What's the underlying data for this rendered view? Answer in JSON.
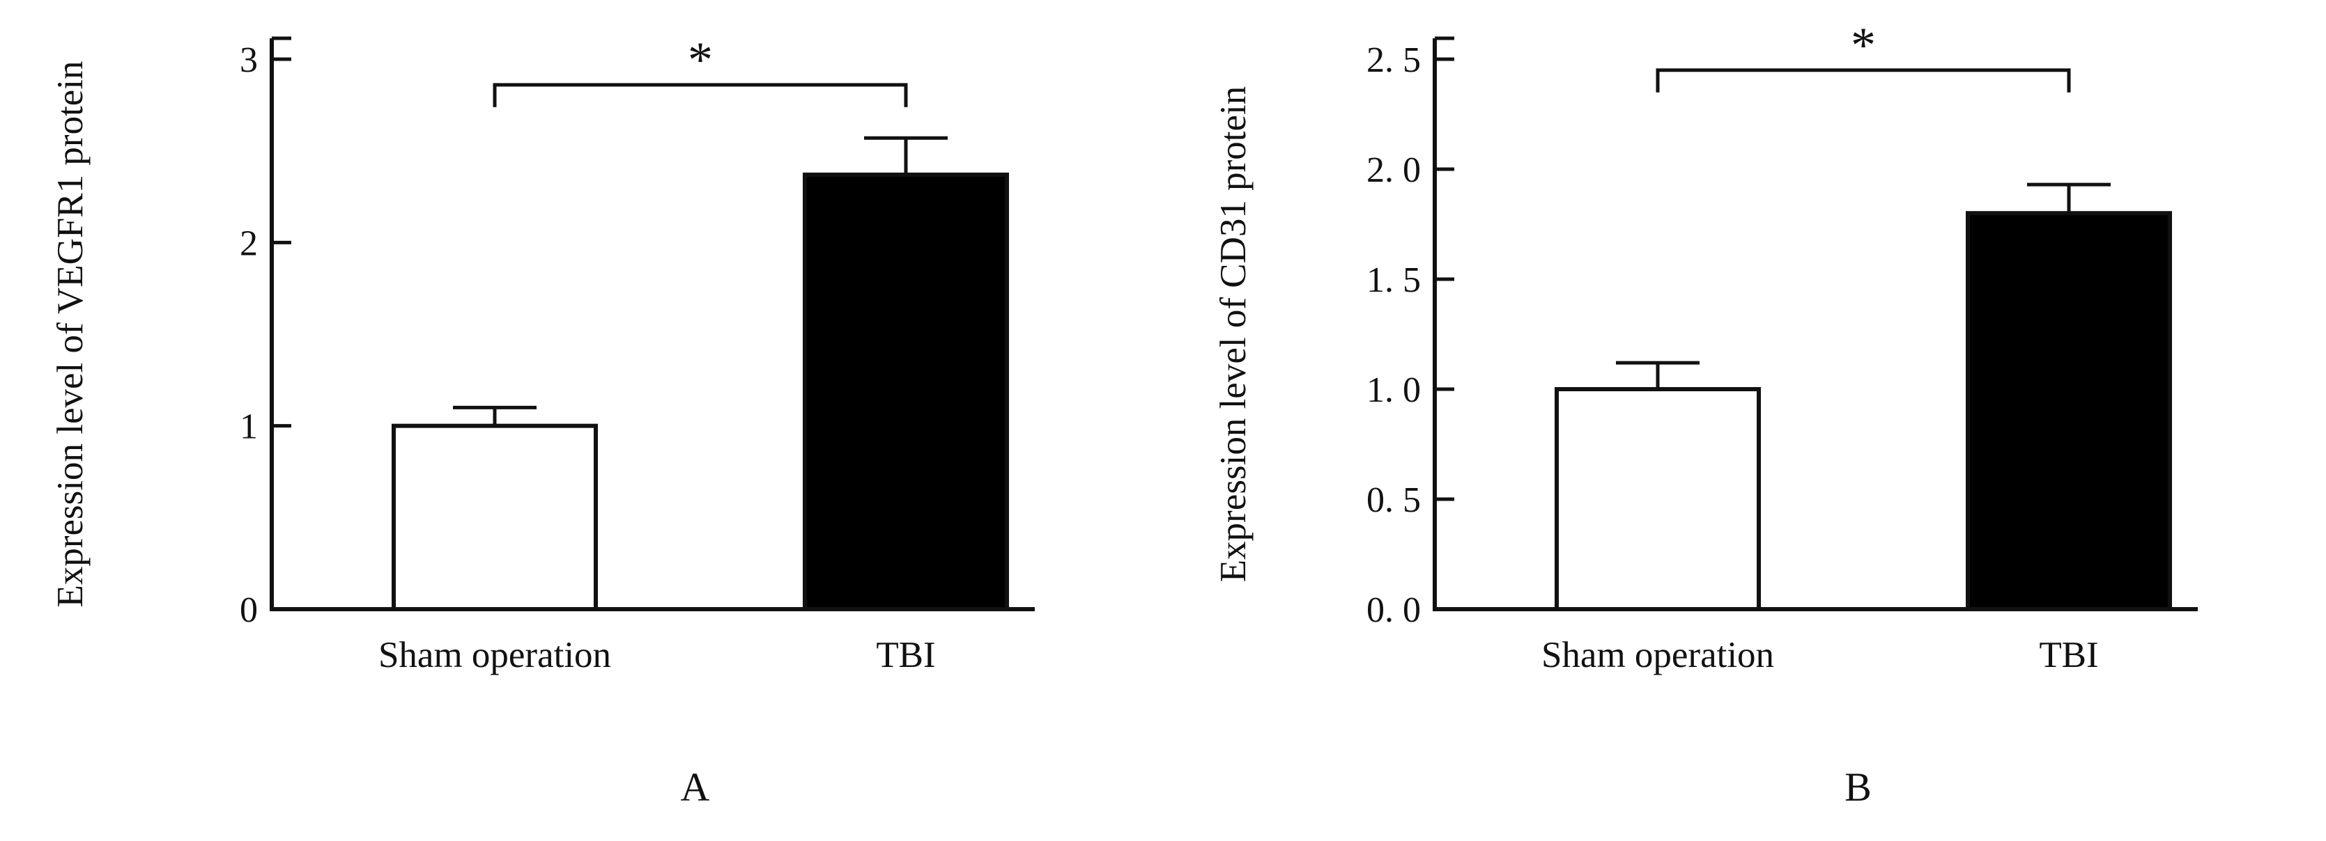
{
  "figure": {
    "background": "#ffffff",
    "line_color": "#111111"
  },
  "chart_data": [
    {
      "type": "bar",
      "panel_label": "A",
      "title": "",
      "xlabel": "",
      "ylabel": "Expression level of VEGFR1 protein",
      "categories": [
        "Sham operation",
        "TBI"
      ],
      "values": [
        1.0,
        2.37
      ],
      "errors": [
        0.1,
        0.2
      ],
      "bar_colors": [
        "#ffffff",
        "#000000"
      ],
      "ylim": [
        0,
        3
      ],
      "yticks": [
        0,
        1,
        2,
        3
      ],
      "ytick_labels": [
        "0",
        "1",
        "2",
        "3"
      ],
      "grid": false,
      "legend": false,
      "significance": {
        "label": "*",
        "y": 2.86,
        "from": 0,
        "to": 1
      }
    },
    {
      "type": "bar",
      "panel_label": "B",
      "title": "",
      "xlabel": "",
      "ylabel": "Expression level of CD31 protein",
      "categories": [
        "Sham operation",
        "TBI"
      ],
      "values": [
        1.0,
        1.8
      ],
      "errors": [
        0.12,
        0.13
      ],
      "bar_colors": [
        "#ffffff",
        "#000000"
      ],
      "ylim": [
        0,
        2.5
      ],
      "yticks": [
        0,
        0.5,
        1.0,
        1.5,
        2.0,
        2.5
      ],
      "ytick_labels": [
        "0. 0",
        "0. 5",
        "1. 0",
        "1. 5",
        "2. 0",
        "2. 5"
      ],
      "grid": false,
      "legend": false,
      "significance": {
        "label": "*",
        "y": 2.45,
        "from": 0,
        "to": 1
      }
    }
  ]
}
